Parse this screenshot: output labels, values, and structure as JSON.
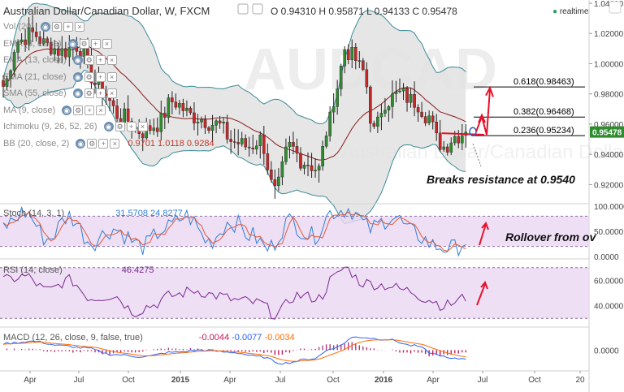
{
  "header": {
    "symbol": "Australian Dollar/Canadian Dollar, W, FXCM",
    "ohlc": "O 0.94310 H 0.95871 L 0.94133 C 0.95478",
    "realtime": "realtime"
  },
  "indicators": [
    {
      "label": "Vol (20)",
      "value": ""
    },
    {
      "label": "EMA (8, close)",
      "value": ""
    },
    {
      "label": "EMA (13, close)",
      "value": ""
    },
    {
      "label": "EMA (21, close)",
      "value": ""
    },
    {
      "label": "SMA (55, close)",
      "value": ""
    },
    {
      "label": "MA (9, close)",
      "value": ""
    },
    {
      "label": "Ichimoku (9, 26, 52, 26)",
      "value": ""
    },
    {
      "label": "BB (20, close, 2)",
      "value": "0.9701  1.0118  0.9284"
    }
  ],
  "price_axis": {
    "ticks": [
      "1.04000",
      "1.02000",
      "1.00000",
      "0.98000",
      "0.96000",
      "0.94000",
      "0.92000"
    ],
    "last_price": "0.95478"
  },
  "fib_levels": [
    {
      "label": "0.618(0.98463)",
      "value": 0.98463
    },
    {
      "label": "0.382(0.96468)",
      "value": 0.96468
    },
    {
      "label": "0.236(0.95234)",
      "value": 0.95234
    }
  ],
  "annotations": {
    "breaks": "Breaks resistance at 0.9540",
    "rollover": "Rollover from ov"
  },
  "stoch": {
    "label": "Stoch (14, 3, 1)",
    "values": "31.5708  24.8277",
    "ticks": [
      "100.0000",
      "50.0000",
      "0.0000"
    ]
  },
  "rsi": {
    "label": "RSI (14, close)",
    "value": "46.4275",
    "ticks": [
      "60.0000",
      "40.0000"
    ]
  },
  "macd": {
    "label": "MACD (12, 26, close, 9, false, true)",
    "values": [
      "-0.0044",
      "-0.0077",
      "-0.0034"
    ],
    "value_colors": [
      "#c2185b",
      "#2962ff",
      "#ff6d00"
    ],
    "ticks": [
      "0.0000"
    ]
  },
  "time_axis": {
    "labels": [
      "Apr",
      "Jul",
      "Oct",
      "2015",
      "Apr",
      "Jul",
      "Oct",
      "2016",
      "Apr",
      "Jul",
      "Oct",
      "20"
    ]
  },
  "colors": {
    "up": "#2f8c2f",
    "down": "#c62828",
    "bb_fill": "#e2e2e2",
    "bb_line": "#3a8a99",
    "ma": "#8b1a1a",
    "stoch_k": "#2f7fd8",
    "stoch_d": "#e05a3a",
    "rsi": "#7b2a8f",
    "macd": "#2962ff",
    "signal": "#ff6d00",
    "arrow": "#e8102a",
    "panel_fill": "#ead7f3"
  },
  "chart_data": {
    "type": "candlestick",
    "title": "Australian Dollar/Canadian Dollar, W, FXCM",
    "ylim": [
      0.91,
      1.04
    ],
    "weeks": 140,
    "price_anchors": [
      [
        0,
        0.985
      ],
      [
        4,
        1.015
      ],
      [
        8,
        1.02
      ],
      [
        12,
        1.012
      ],
      [
        16,
        1.008
      ],
      [
        20,
        1.012
      ],
      [
        26,
        0.985
      ],
      [
        32,
        0.965
      ],
      [
        38,
        0.955
      ],
      [
        42,
        0.96
      ],
      [
        46,
        0.975
      ],
      [
        52,
        0.965
      ],
      [
        58,
        0.96
      ],
      [
        63,
        0.948
      ],
      [
        67,
        0.945
      ],
      [
        70,
        0.95
      ],
      [
        74,
        0.915
      ],
      [
        78,
        0.945
      ],
      [
        82,
        0.935
      ],
      [
        86,
        0.93
      ],
      [
        88,
        0.955
      ],
      [
        91,
        0.985
      ],
      [
        93,
        1.01
      ],
      [
        95,
        1.005
      ],
      [
        98,
        0.995
      ],
      [
        101,
        0.955
      ],
      [
        104,
        0.975
      ],
      [
        108,
        0.98
      ],
      [
        112,
        0.975
      ],
      [
        116,
        0.965
      ],
      [
        118,
        0.95
      ],
      [
        120,
        0.945
      ],
      [
        123,
        0.952
      ],
      [
        126,
        0.955
      ]
    ],
    "stoch_anchors": [
      [
        0,
        60
      ],
      [
        6,
        88
      ],
      [
        12,
        35
      ],
      [
        18,
        80
      ],
      [
        24,
        30
      ],
      [
        30,
        55
      ],
      [
        38,
        20
      ],
      [
        44,
        55
      ],
      [
        50,
        80
      ],
      [
        56,
        30
      ],
      [
        62,
        70
      ],
      [
        68,
        40
      ],
      [
        72,
        15
      ],
      [
        78,
        70
      ],
      [
        84,
        40
      ],
      [
        90,
        90
      ],
      [
        94,
        95
      ],
      [
        100,
        55
      ],
      [
        106,
        80
      ],
      [
        112,
        45
      ],
      [
        118,
        20
      ],
      [
        123,
        15
      ],
      [
        126,
        31
      ]
    ],
    "rsi_anchors": [
      [
        0,
        60
      ],
      [
        6,
        63
      ],
      [
        12,
        52
      ],
      [
        18,
        60
      ],
      [
        24,
        46
      ],
      [
        30,
        48
      ],
      [
        36,
        35
      ],
      [
        40,
        40
      ],
      [
        46,
        48
      ],
      [
        52,
        52
      ],
      [
        58,
        48
      ],
      [
        64,
        44
      ],
      [
        70,
        42
      ],
      [
        74,
        33
      ],
      [
        80,
        48
      ],
      [
        86,
        46
      ],
      [
        90,
        62
      ],
      [
        93,
        70
      ],
      [
        98,
        58
      ],
      [
        104,
        56
      ],
      [
        110,
        52
      ],
      [
        116,
        45
      ],
      [
        120,
        40
      ],
      [
        126,
        46
      ]
    ],
    "macd_anchors": [
      [
        0,
        0.006
      ],
      [
        8,
        0.008
      ],
      [
        16,
        0.004
      ],
      [
        22,
        0.002
      ],
      [
        30,
        -0.004
      ],
      [
        38,
        -0.006
      ],
      [
        46,
        -0.002
      ],
      [
        54,
        0.0
      ],
      [
        62,
        -0.002
      ],
      [
        70,
        -0.006
      ],
      [
        76,
        -0.012
      ],
      [
        84,
        -0.008
      ],
      [
        90,
        0.002
      ],
      [
        96,
        0.012
      ],
      [
        104,
        0.01
      ],
      [
        112,
        0.004
      ],
      [
        118,
        -0.004
      ],
      [
        122,
        -0.008
      ],
      [
        126,
        -0.0077
      ]
    ]
  }
}
